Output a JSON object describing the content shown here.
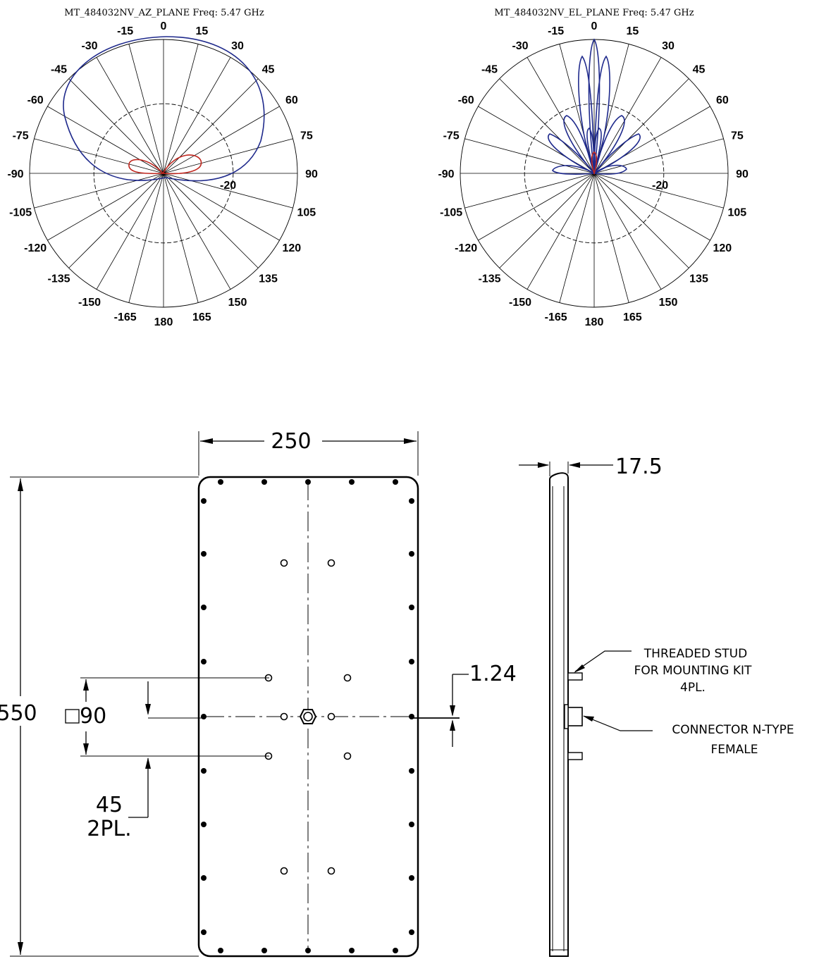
{
  "colors": {
    "primary_pattern": "#1f2a8c",
    "secondary_pattern": "#c0271f",
    "line": "#000000"
  },
  "polar_plots": [
    {
      "title": "MT_484032NV_AZ_PLANE  Freq:  5.47 GHz",
      "angle_labels": [
        "0",
        "15",
        "30",
        "45",
        "60",
        "75",
        "90",
        "105",
        "120",
        "135",
        "150",
        "165",
        "180",
        "-165",
        "-150",
        "-135",
        "-120",
        "-105",
        "-90",
        "-75",
        "-60",
        "-45",
        "-30",
        "-15"
      ],
      "radial_label": "-20"
    },
    {
      "title": "MT_484032NV_EL_PLANE  Freq:  5.47 GHz",
      "angle_labels": [
        "0",
        "15",
        "30",
        "45",
        "60",
        "75",
        "90",
        "105",
        "120",
        "135",
        "150",
        "165",
        "180",
        "-165",
        "-150",
        "-135",
        "-120",
        "-105",
        "-90",
        "-75",
        "-60",
        "-45",
        "-30",
        "-15"
      ],
      "radial_label": "-20"
    }
  ],
  "mechanical_drawing": {
    "width": "250",
    "height": "550",
    "thickness": "17.5",
    "offset": "1.24",
    "square_size": "90",
    "stud_spacing": "45",
    "stud_spacing_qty": "2PL.",
    "stud_note": [
      "THREADED  STUD",
      "FOR  MOUNTING  KIT",
      "4PL."
    ],
    "connector_note": [
      "CONNECTOR  N-TYPE",
      "FEMALE"
    ]
  }
}
